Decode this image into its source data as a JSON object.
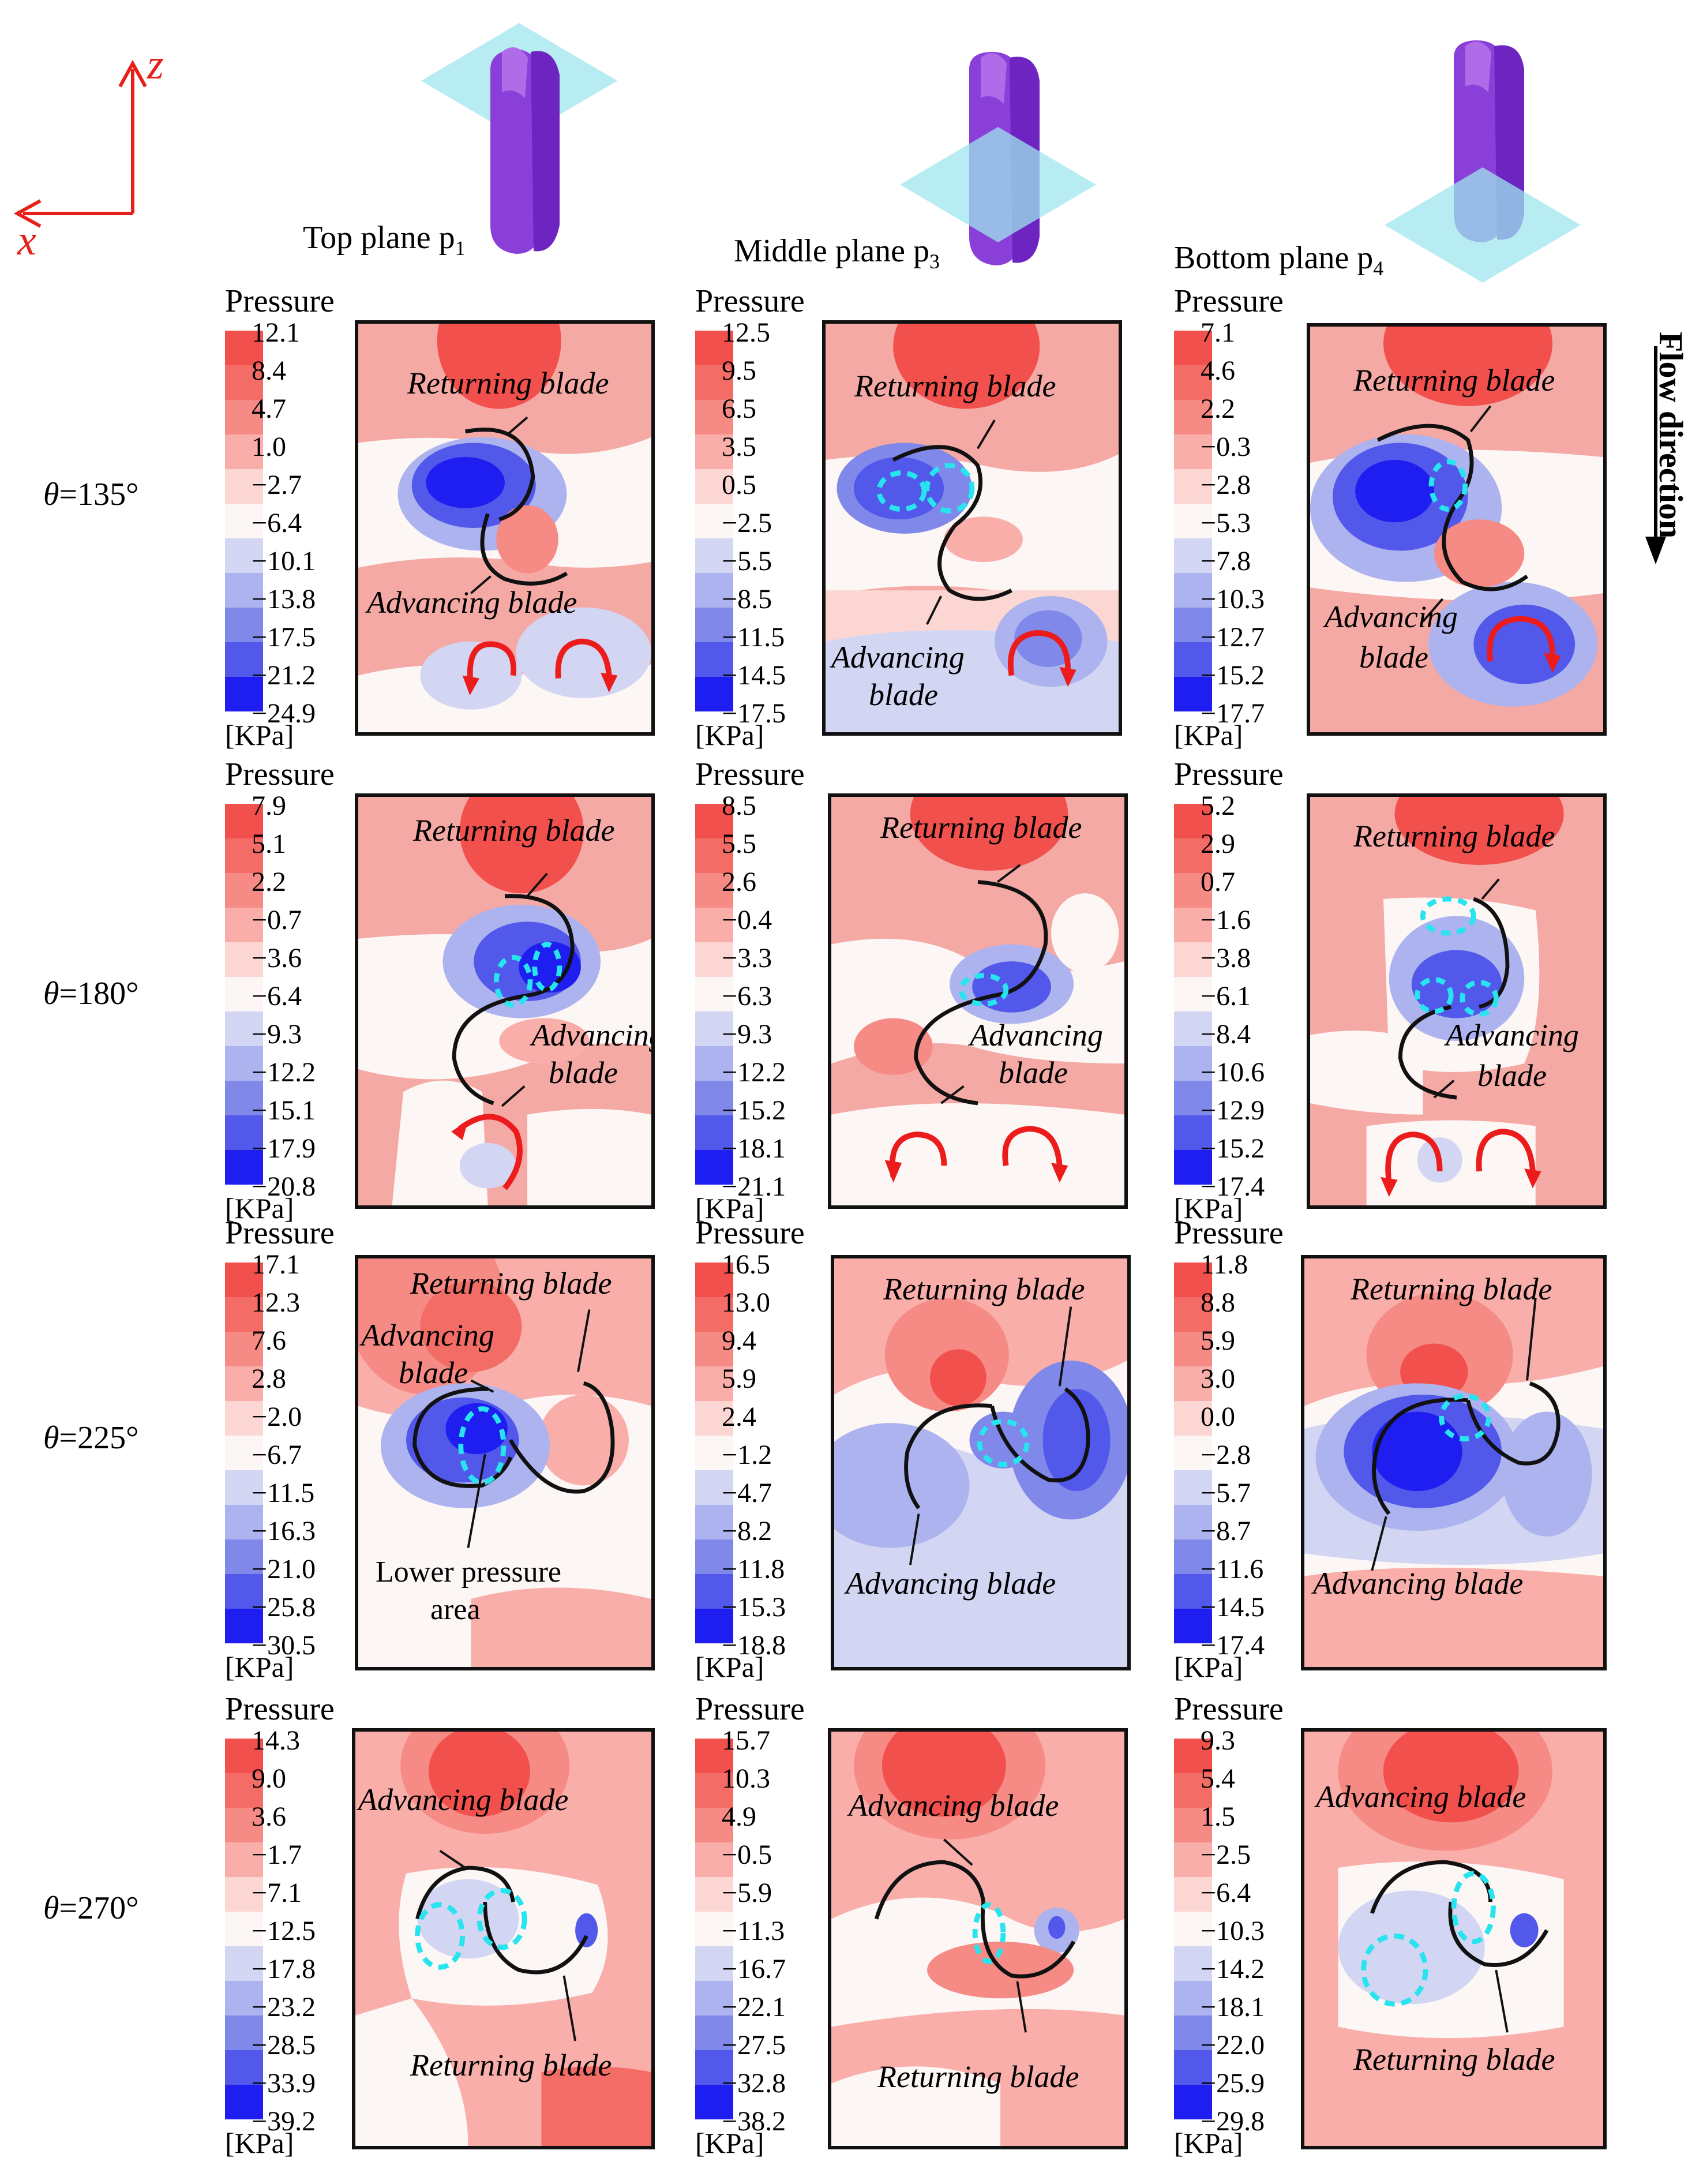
{
  "axes": {
    "z": "z",
    "x": "x"
  },
  "planes": [
    {
      "name": "Top plane",
      "sub": "1",
      "prefix": "p"
    },
    {
      "name": "Middle plane",
      "sub": "3",
      "prefix": "p"
    },
    {
      "name": "Bottom plane",
      "sub": "4",
      "prefix": "p"
    }
  ],
  "flow_direction": "Flow direction",
  "legend": {
    "title": "Pressure",
    "unit": "[KPa]"
  },
  "rows": [
    {
      "theta": "θ",
      "angle": "=135°",
      "panels": [
        {
          "ticks": [
            "12.1",
            "8.4",
            "4.7",
            "1.0",
            "−2.7",
            "−6.4",
            "−10.1",
            "−13.8",
            "−17.5",
            "−21.2",
            "−24.9"
          ]
        },
        {
          "ticks": [
            "12.5",
            "9.5",
            "6.5",
            "3.5",
            "0.5",
            "−2.5",
            "−5.5",
            "−8.5",
            "−11.5",
            "−14.5",
            "−17.5"
          ]
        },
        {
          "ticks": [
            "7.1",
            "4.6",
            "2.2",
            "−0.3",
            "−2.8",
            "−5.3",
            "−7.8",
            "−10.3",
            "−12.7",
            "−15.2",
            "−17.7"
          ]
        }
      ]
    },
    {
      "theta": "θ",
      "angle": "=180°",
      "panels": [
        {
          "ticks": [
            "7.9",
            "5.1",
            "2.2",
            "−0.7",
            "−3.6",
            "−6.4",
            "−9.3",
            "−12.2",
            "−15.1",
            "−17.9",
            "−20.8"
          ]
        },
        {
          "ticks": [
            "8.5",
            "5.5",
            "2.6",
            "−0.4",
            "−3.3",
            "−6.3",
            "−9.3",
            "−12.2",
            "−15.2",
            "−18.1",
            "−21.1"
          ]
        },
        {
          "ticks": [
            "5.2",
            "2.9",
            "0.7",
            "−1.6",
            "−3.8",
            "−6.1",
            "−8.4",
            "−10.6",
            "−12.9",
            "−15.2",
            "−17.4"
          ]
        }
      ]
    },
    {
      "theta": "θ",
      "angle": "=225°",
      "panels": [
        {
          "ticks": [
            "17.1",
            "12.3",
            "7.6",
            "2.8",
            "−2.0",
            "−6.7",
            "−11.5",
            "−16.3",
            "−21.0",
            "−25.8",
            "−30.5"
          ]
        },
        {
          "ticks": [
            "16.5",
            "13.0",
            "9.4",
            "5.9",
            "2.4",
            "−1.2",
            "−4.7",
            "−8.2",
            "−11.8",
            "−15.3",
            "−18.8"
          ]
        },
        {
          "ticks": [
            "11.8",
            "8.8",
            "5.9",
            "3.0",
            "0.0",
            "−2.8",
            "−5.7",
            "−8.7",
            "−11.6",
            "−14.5",
            "−17.4"
          ]
        }
      ]
    },
    {
      "theta": "θ",
      "angle": "=270°",
      "panels": [
        {
          "ticks": [
            "14.3",
            "9.0",
            "3.6",
            "−1.7",
            "−7.1",
            "−12.5",
            "−17.8",
            "−23.2",
            "−28.5",
            "−33.9",
            "−39.2"
          ]
        },
        {
          "ticks": [
            "15.7",
            "10.3",
            "4.9",
            "−0.5",
            "−5.9",
            "−11.3",
            "−16.7",
            "−22.1",
            "−27.5",
            "−32.8",
            "−38.2"
          ]
        },
        {
          "ticks": [
            "9.3",
            "5.4",
            "1.5",
            "−2.5",
            "−6.4",
            "−10.3",
            "−14.2",
            "−18.1",
            "−22.0",
            "−25.9",
            "−29.8"
          ]
        }
      ]
    }
  ],
  "annotations": {
    "returning": "Returning blade",
    "advancing": "Advancing blade",
    "advancing_l1": "Advancing",
    "blade": "blade",
    "lower_l1": "Lower pressure",
    "lower_l2": "area"
  },
  "colors": {
    "scale": [
      "#f2504c",
      "#f46c66",
      "#f68a84",
      "#f9aeaa",
      "#fbd6d3",
      "#fcf6f5",
      "#d2d6f3",
      "#adb3ee",
      "#8088ea",
      "#5158ea",
      "#1e1ef0"
    ],
    "vortex": "#ec1c1c",
    "dashed": "#27e4ef",
    "axis": "#e8201c"
  }
}
